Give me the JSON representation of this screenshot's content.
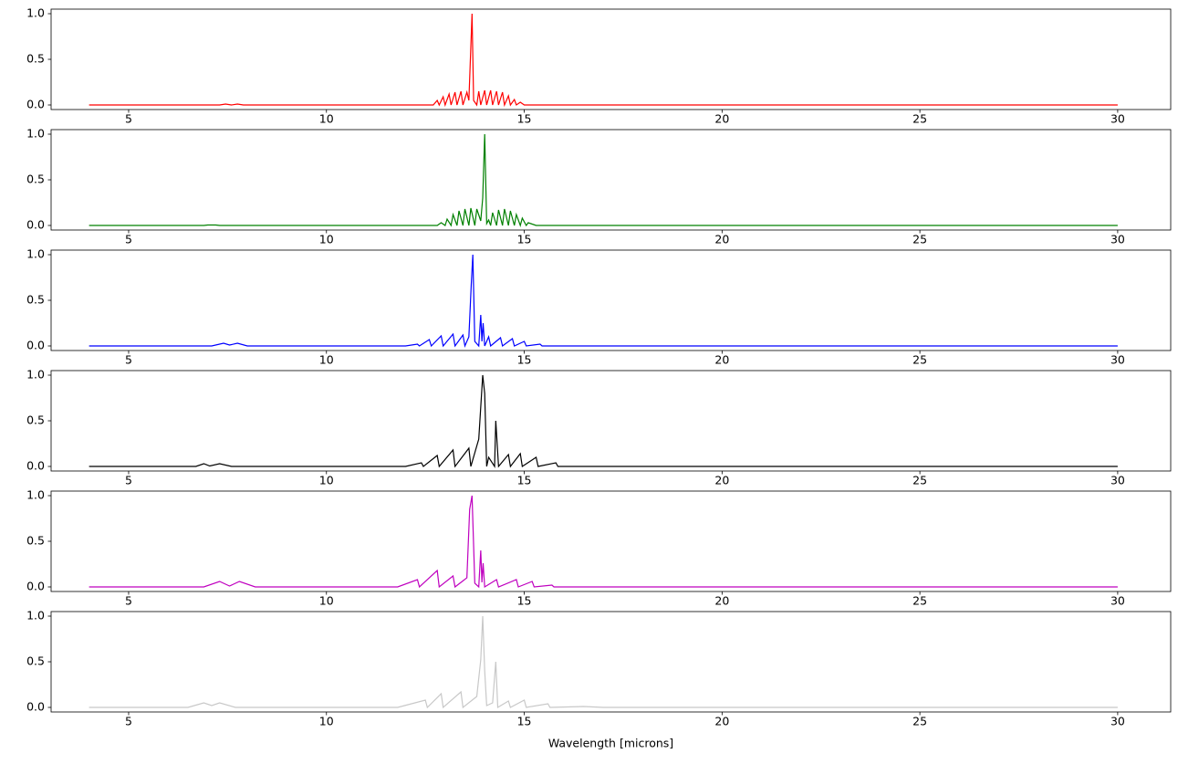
{
  "chart_data": [
    {
      "type": "line",
      "color": "#ff0000",
      "x": [
        4,
        7.3,
        7.45,
        7.6,
        7.75,
        7.9,
        12.6,
        12.7,
        12.8,
        12.85,
        12.95,
        13.0,
        13.1,
        13.15,
        13.25,
        13.3,
        13.4,
        13.45,
        13.55,
        13.6,
        13.68,
        13.72,
        13.8,
        13.85,
        13.9,
        14.0,
        14.05,
        14.15,
        14.2,
        14.3,
        14.35,
        14.45,
        14.5,
        14.6,
        14.65,
        14.75,
        14.8,
        14.9,
        15.0,
        15.2,
        30
      ],
      "values": [
        0,
        0,
        0.01,
        0,
        0.01,
        0,
        0,
        0,
        0.05,
        0,
        0.09,
        0,
        0.12,
        0,
        0.14,
        0,
        0.15,
        0,
        0.14,
        0.05,
        1.0,
        0.05,
        0,
        0.15,
        0,
        0.16,
        0,
        0.16,
        0,
        0.15,
        0,
        0.14,
        0,
        0.1,
        0,
        0.06,
        0,
        0.03,
        0,
        0,
        0
      ],
      "xlim": [
        3.04,
        31.34
      ],
      "ylim": [
        -0.05,
        1.05
      ],
      "xticks": [
        5,
        10,
        15,
        20,
        25,
        30
      ],
      "yticks": [
        {
          "value": 0,
          "label": "0.0"
        },
        0.5,
        {
          "value": 1,
          "label": "1.0"
        }
      ]
    },
    {
      "type": "line",
      "color": "#008000",
      "x": [
        4,
        6.9,
        7.0,
        7.2,
        7.3,
        12.8,
        12.9,
        13.0,
        13.05,
        13.15,
        13.2,
        13.3,
        13.35,
        13.45,
        13.5,
        13.6,
        13.65,
        13.75,
        13.8,
        13.9,
        13.95,
        14.0,
        14.05,
        14.1,
        14.15,
        14.2,
        14.3,
        14.35,
        14.45,
        14.5,
        14.6,
        14.65,
        14.75,
        14.8,
        14.9,
        14.95,
        15.05,
        15.1,
        15.3,
        30
      ],
      "values": [
        0,
        0,
        0.005,
        0.005,
        0,
        0,
        0.03,
        0,
        0.07,
        0,
        0.12,
        0,
        0.16,
        0,
        0.18,
        0,
        0.19,
        0,
        0.18,
        0.05,
        0.3,
        1.0,
        0.02,
        0.06,
        0,
        0.14,
        0,
        0.17,
        0,
        0.18,
        0,
        0.16,
        0,
        0.12,
        0,
        0.08,
        0,
        0.03,
        0,
        0
      ],
      "xlim": [
        3.04,
        31.34
      ],
      "ylim": [
        -0.05,
        1.05
      ],
      "xticks": [
        5,
        10,
        15,
        20,
        25,
        30
      ],
      "yticks": [
        {
          "value": 0,
          "label": "0.0"
        },
        0.5,
        {
          "value": 1,
          "label": "1.0"
        }
      ]
    },
    {
      "type": "line",
      "color": "#0000ff",
      "x": [
        4,
        7.1,
        7.4,
        7.55,
        7.75,
        8.0,
        12.0,
        12.3,
        12.35,
        12.6,
        12.65,
        12.9,
        12.95,
        13.2,
        13.25,
        13.45,
        13.5,
        13.6,
        13.66,
        13.7,
        13.75,
        13.85,
        13.9,
        13.93,
        13.96,
        14.0,
        14.1,
        14.15,
        14.4,
        14.45,
        14.7,
        14.75,
        15.0,
        15.05,
        15.4,
        15.45,
        16.0,
        30
      ],
      "values": [
        0,
        0,
        0.03,
        0.01,
        0.03,
        0,
        0,
        0.02,
        0,
        0.07,
        0,
        0.11,
        0,
        0.13,
        0,
        0.12,
        0,
        0.1,
        0.67,
        1.0,
        0.05,
        0,
        0.34,
        0.05,
        0.25,
        0,
        0.1,
        0,
        0.09,
        0,
        0.08,
        0,
        0.05,
        0,
        0.02,
        0,
        0,
        0
      ],
      "xlim": [
        3.04,
        31.34
      ],
      "ylim": [
        -0.05,
        1.05
      ],
      "xticks": [
        5,
        10,
        15,
        20,
        25,
        30
      ],
      "yticks": [
        {
          "value": 0,
          "label": "0.0"
        },
        0.5,
        {
          "value": 1,
          "label": "1.0"
        }
      ]
    },
    {
      "type": "line",
      "color": "#000000",
      "x": [
        4,
        6.7,
        6.9,
        7.05,
        7.3,
        7.6,
        12.0,
        12.4,
        12.45,
        12.8,
        12.85,
        13.2,
        13.25,
        13.6,
        13.65,
        13.85,
        13.95,
        14.0,
        14.05,
        14.1,
        14.25,
        14.28,
        14.35,
        14.6,
        14.65,
        14.9,
        14.95,
        15.3,
        15.35,
        15.8,
        15.85,
        16.3,
        30
      ],
      "values": [
        0,
        0,
        0.03,
        0.005,
        0.03,
        0,
        0,
        0.04,
        0,
        0.12,
        0,
        0.18,
        0,
        0.2,
        0,
        0.3,
        1.0,
        0.8,
        0,
        0.1,
        0,
        0.5,
        0,
        0.13,
        0,
        0.14,
        0,
        0.1,
        0,
        0.04,
        0,
        0,
        0
      ],
      "xlim": [
        3.04,
        31.34
      ],
      "ylim": [
        -0.05,
        1.05
      ],
      "xticks": [
        5,
        10,
        15,
        20,
        25,
        30
      ],
      "yticks": [
        {
          "value": 0,
          "label": "0.0"
        },
        0.5,
        {
          "value": 1,
          "label": "1.0"
        }
      ]
    },
    {
      "type": "line",
      "color": "#bf00bf",
      "x": [
        4,
        6.9,
        7.3,
        7.55,
        7.8,
        8.2,
        11.8,
        12.3,
        12.35,
        12.8,
        12.85,
        13.2,
        13.25,
        13.55,
        13.62,
        13.68,
        13.75,
        13.85,
        13.9,
        13.93,
        13.96,
        14.0,
        14.3,
        14.35,
        14.8,
        14.85,
        15.2,
        15.25,
        15.7,
        15.75,
        16.3,
        30
      ],
      "values": [
        0,
        0,
        0.06,
        0.01,
        0.06,
        0,
        0,
        0.08,
        0,
        0.18,
        0,
        0.12,
        0,
        0.1,
        0.85,
        1.0,
        0.04,
        0,
        0.4,
        0.05,
        0.26,
        0,
        0.08,
        0,
        0.08,
        0,
        0.06,
        0,
        0.02,
        0,
        0,
        0
      ],
      "xlim": [
        3.04,
        31.34
      ],
      "ylim": [
        -0.05,
        1.05
      ],
      "xticks": [
        5,
        10,
        15,
        20,
        25,
        30
      ],
      "yticks": [
        {
          "value": 0,
          "label": "0.0"
        },
        0.5,
        {
          "value": 1,
          "label": "1.0"
        }
      ]
    },
    {
      "type": "line",
      "color": "#c8c8c8",
      "x": [
        4,
        6.5,
        6.9,
        7.1,
        7.3,
        7.7,
        11.8,
        12.5,
        12.55,
        12.9,
        12.95,
        13.4,
        13.45,
        13.8,
        13.9,
        13.95,
        14.0,
        14.05,
        14.2,
        14.28,
        14.33,
        14.6,
        14.65,
        15.0,
        15.05,
        15.6,
        15.65,
        16.5,
        17.0,
        30
      ],
      "values": [
        0,
        0,
        0.05,
        0.02,
        0.05,
        0,
        0,
        0.08,
        0,
        0.15,
        0,
        0.17,
        0,
        0.12,
        0.52,
        1.0,
        0.4,
        0.02,
        0.05,
        0.5,
        0,
        0.07,
        0,
        0.08,
        0,
        0.04,
        0,
        0.01,
        0,
        0
      ],
      "xlim": [
        3.04,
        31.34
      ],
      "ylim": [
        -0.05,
        1.05
      ],
      "xticks": [
        5,
        10,
        15,
        20,
        25,
        30
      ],
      "yticks": [
        {
          "value": 0,
          "label": "0.0"
        },
        0.5,
        {
          "value": 1,
          "label": "1.0"
        }
      ],
      "x_label": "Wavelength [microns]"
    }
  ]
}
